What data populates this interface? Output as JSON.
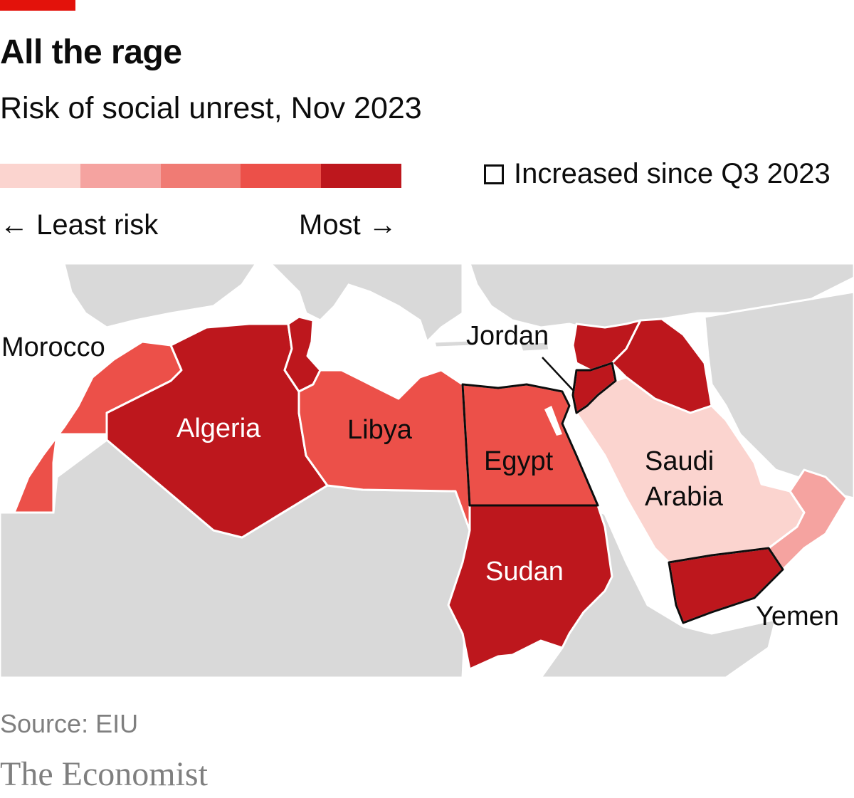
{
  "title": "All the rage",
  "subtitle": "Risk of social unrest, Nov 2023",
  "legend": {
    "scale_colors": [
      "#fbd4cf",
      "#f5a3a0",
      "#f07b74",
      "#ec5049",
      "#bd171d"
    ],
    "left_label": "← Least risk",
    "right_label": "Most →",
    "increased_label": "Increased since Q3 2023"
  },
  "map": {
    "land_color": "#d9d9d9",
    "sea_color": "#ffffff",
    "border_color": "#ffffff",
    "increased_outline_color": "#0c0c0c",
    "countries": [
      {
        "key": "morocco",
        "label": "Morocco",
        "risk": 4,
        "increased": false
      },
      {
        "key": "algeria",
        "label": "Algeria",
        "risk": 5,
        "increased": false
      },
      {
        "key": "tunisia",
        "label": "",
        "risk": 5,
        "increased": false
      },
      {
        "key": "libya",
        "label": "Libya",
        "risk": 4,
        "increased": false
      },
      {
        "key": "egypt",
        "label": "Egypt",
        "risk": 4,
        "increased": true
      },
      {
        "key": "sudan",
        "label": "Sudan",
        "risk": 5,
        "increased": false
      },
      {
        "key": "jordan",
        "label": "Jordan",
        "risk": 5,
        "increased": true
      },
      {
        "key": "syria",
        "label": "",
        "risk": 5,
        "increased": false
      },
      {
        "key": "iraq",
        "label": "",
        "risk": 5,
        "increased": false
      },
      {
        "key": "saudi",
        "label": "Saudi Arabia",
        "label_lines": [
          "Saudi",
          "Arabia"
        ],
        "risk": 1,
        "increased": false
      },
      {
        "key": "yemen",
        "label": "Yemen",
        "risk": 5,
        "increased": true
      },
      {
        "key": "oman",
        "label": "",
        "risk": 2,
        "increased": false
      }
    ]
  },
  "source": "Source: EIU",
  "brand": "The Economist"
}
